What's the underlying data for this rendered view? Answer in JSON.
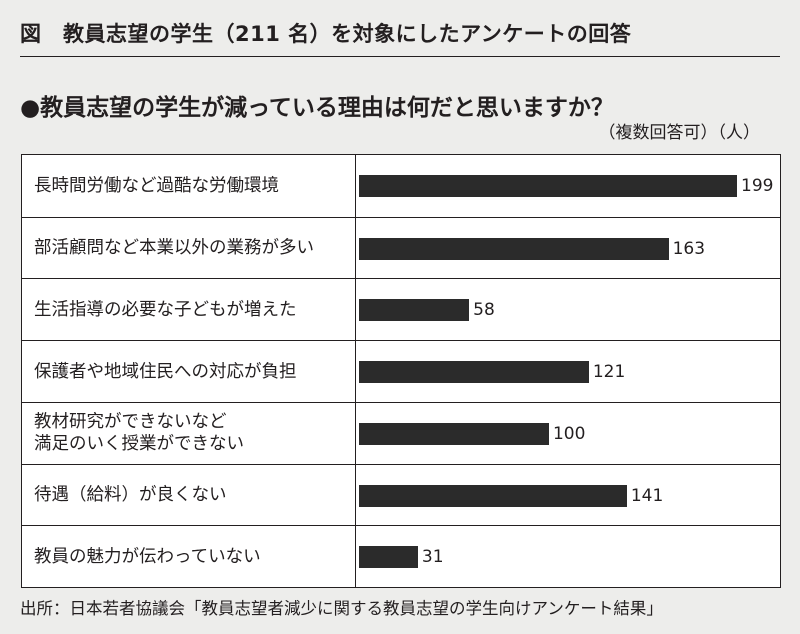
{
  "figure": {
    "title": "図　教員志望の学生（211 名）を対象にしたアンケートの回答",
    "question": "●教員志望の学生が減っている理由は何だと思いますか？",
    "units": "（複数回答可）（人）",
    "source": "出所：日本若者協議会「教員志望者減少に関する教員志望の学生向けアンケート結果」"
  },
  "chart_data": {
    "type": "bar",
    "orientation": "horizontal",
    "categories": [
      [
        "長時間労働など過酷な労働環境"
      ],
      [
        "部活顧問など本業以外の業務が多い"
      ],
      [
        "生活指導の必要な子どもが増えた"
      ],
      [
        "保護者や地域住民への対応が負担"
      ],
      [
        "教材研究ができないなど",
        "満足のいく授業ができない"
      ],
      [
        "待遇（給料）が良くない"
      ],
      [
        "教員の魅力が伝わっていない"
      ]
    ],
    "values": [
      199,
      163,
      58,
      121,
      100,
      141,
      31
    ],
    "units": "（人）",
    "colors": {
      "bar": "#2b2b2b",
      "panel": "#ffffff",
      "page": "#ededeb"
    },
    "grid": false,
    "legend": "none"
  }
}
